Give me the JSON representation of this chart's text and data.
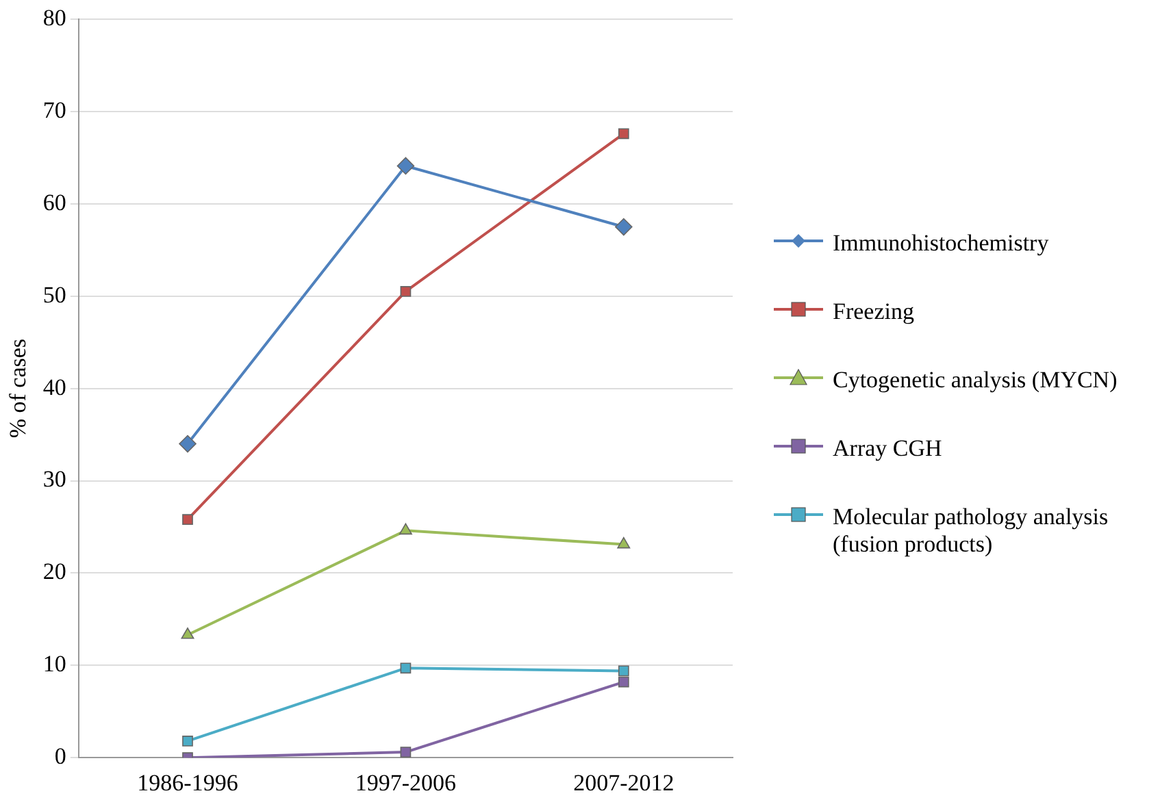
{
  "chart_data": {
    "type": "line",
    "ylabel": "% of cases",
    "categories": [
      "1986-1996",
      "1997-2006",
      "2007-2012"
    ],
    "ylim": [
      0,
      80
    ],
    "yticks": [
      0,
      10,
      20,
      30,
      40,
      50,
      60,
      70,
      80
    ],
    "grid": "y",
    "legend": "right",
    "line_style": "solid",
    "series": [
      {
        "name": "Immunohistochemistry",
        "color": "#4f81bd",
        "marker": "diamond",
        "values": [
          34,
          64.1,
          57.5
        ]
      },
      {
        "name": "Freezing",
        "color": "#c0504d",
        "marker": "square",
        "values": [
          25.8,
          50.5,
          67.6
        ]
      },
      {
        "name": "Cytogenetic analysis (MYCN)",
        "color": "#9bbb59",
        "marker": "triangle",
        "values": [
          13.3,
          24.6,
          23.1
        ]
      },
      {
        "name": "Array CGH",
        "color": "#8064a2",
        "marker": "square",
        "values": [
          0,
          0.6,
          8.2
        ]
      },
      {
        "name": "Molecular pathology analysis (fusion products)",
        "color": "#4bacc6",
        "marker": "square",
        "values": [
          1.8,
          9.7,
          9.4
        ]
      }
    ]
  }
}
